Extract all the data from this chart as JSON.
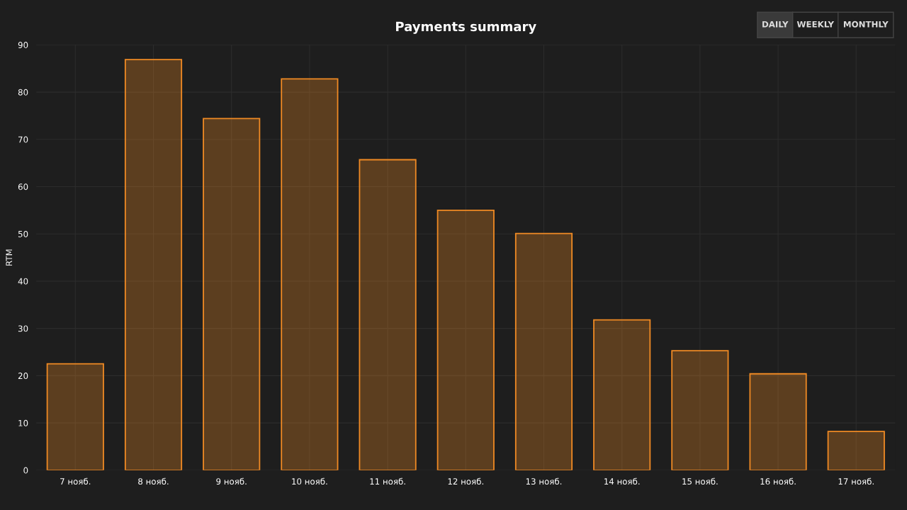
{
  "chart_data": {
    "type": "bar",
    "title": "Payments summary",
    "ylabel": "RTM",
    "categories": [
      "7 нояб.",
      "8 нояб.",
      "9 нояб.",
      "10 нояб.",
      "11 нояб.",
      "12 нояб.",
      "13 нояб.",
      "14 нояб.",
      "15 нояб.",
      "16 нояб.",
      "17 нояб."
    ],
    "series": [
      {
        "color": "#f08a24",
        "values": [
          22.5,
          86.9,
          74.4,
          82.8,
          65.7,
          55.0,
          50.1,
          31.8,
          25.3,
          20.4,
          8.2
        ]
      }
    ],
    "ylim": [
      0,
      90
    ],
    "yticks": [
      0,
      10,
      20,
      30,
      40,
      50,
      60,
      70,
      80,
      90
    ],
    "grid": true,
    "legend": false,
    "annotations": [
      "DAILY",
      "WEEKLY",
      "MONTHLY"
    ]
  }
}
